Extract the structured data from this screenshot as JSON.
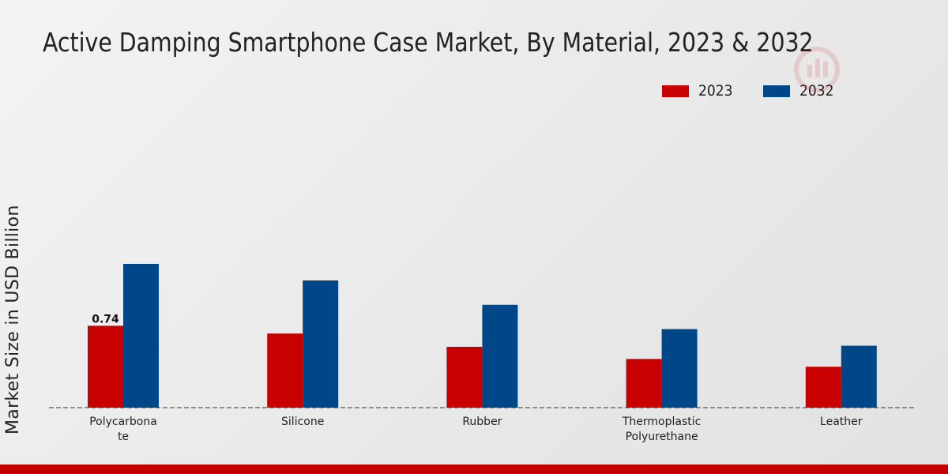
{
  "chart_data": {
    "type": "bar",
    "title": "Active Damping Smartphone Case Market, By Material, 2023 & 2032",
    "xlabel": "",
    "ylabel": "Market Size in USD Billion",
    "categories": [
      [
        "Polycarbona",
        "te"
      ],
      [
        "Silicone"
      ],
      [
        "Rubber"
      ],
      [
        "Thermoplastic",
        "Polyurethane"
      ],
      [
        "Leather"
      ]
    ],
    "series": [
      {
        "name": "2023",
        "color": "#c80000",
        "values": [
          0.74,
          0.67,
          0.55,
          0.44,
          0.37
        ]
      },
      {
        "name": "2032",
        "color": "#00478a",
        "values": [
          1.3,
          1.15,
          0.93,
          0.71,
          0.56
        ]
      }
    ],
    "data_labels": [
      {
        "series": 0,
        "index": 0,
        "text": "0.74"
      }
    ],
    "ylim": [
      0,
      2.8
    ],
    "grid": false,
    "legend": "top-right"
  }
}
